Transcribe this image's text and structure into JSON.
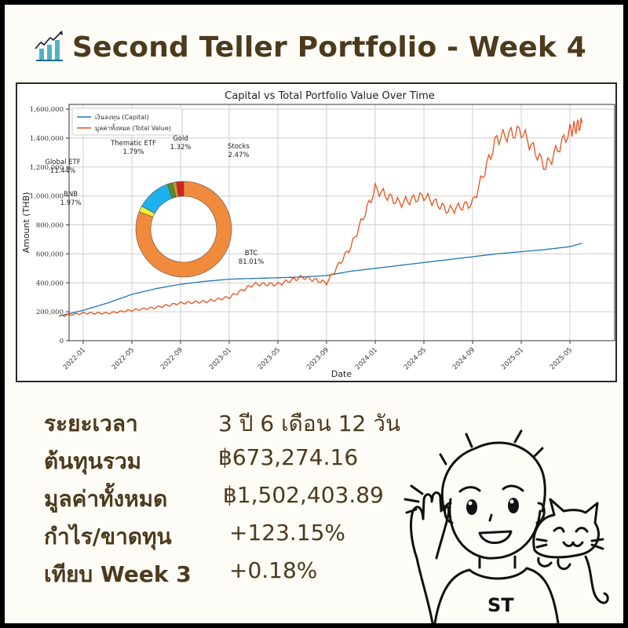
{
  "header": {
    "title": "Second Teller Portfolio - Week 4",
    "icon": "bar-chart-trend-icon",
    "icon_colors": {
      "bars": "#4fb3c7",
      "arrow": "#1a1a2e"
    }
  },
  "stats": [
    {
      "label": "ระยะเวลา",
      "value": "3 ปี 6 เดือน 12 วัน",
      "value_x": 222
    },
    {
      "label": "ต้นทุนรวม",
      "value": "฿673,274.16",
      "value_x": 222
    },
    {
      "label": "มูลค่าทั้งหมด",
      "value": "฿1,502,403.89",
      "value_x": 228
    },
    {
      "label": "กำไร/ขาดทุน",
      "value": "+123.15%",
      "value_x": 236
    },
    {
      "label": "เทียบ Week 3",
      "value": "+0.18%",
      "value_x": 236
    }
  ],
  "mascot": {
    "shirt_text": "ST"
  },
  "colors": {
    "text": "#4d3a1c",
    "capital_line": "#1f77b4",
    "total_line": "#e8531e",
    "background": "#fdfcf7"
  },
  "chart_data": [
    {
      "type": "line",
      "title": "Capital vs Total Portfolio Value Over Time",
      "xlabel": "Date",
      "ylabel": "Amount (THB)",
      "ylim": [
        0,
        1600000
      ],
      "yticks": [
        "0",
        "200,000",
        "400,000",
        "600,000",
        "800,000",
        "1,000,000",
        "1,200,000",
        "1,400,000",
        "1,600,000"
      ],
      "xticks": [
        "2022-01",
        "2022-05",
        "2022-09",
        "2023-01",
        "2023-05",
        "2023-09",
        "2024-01",
        "2024-05",
        "2024-09",
        "2025-01",
        "2025-05"
      ],
      "grid": true,
      "legend_position": "upper left",
      "legend": [
        "เงินลงทุน (Capital)",
        "มูลค่าทั้งหมด (Total Value)"
      ],
      "x": [
        "2021-11",
        "2022-01",
        "2022-03",
        "2022-05",
        "2022-07",
        "2022-09",
        "2022-11",
        "2023-01",
        "2023-03",
        "2023-05",
        "2023-07",
        "2023-09",
        "2023-11",
        "2024-01",
        "2024-03",
        "2024-05",
        "2024-07",
        "2024-09",
        "2024-11",
        "2025-01",
        "2025-03",
        "2025-05",
        "2025-06"
      ],
      "series": [
        {
          "name": "เงินลงทุน (Capital)",
          "color": "#1f77b4",
          "values": [
            170000,
            210000,
            260000,
            320000,
            360000,
            390000,
            410000,
            425000,
            430000,
            435000,
            440000,
            450000,
            480000,
            500000,
            520000,
            540000,
            560000,
            580000,
            600000,
            615000,
            630000,
            650000,
            673274
          ]
        },
        {
          "name": "มูลค่าทั้งหมด (Total Value)",
          "color": "#e8531e",
          "values": [
            170000,
            190000,
            190000,
            210000,
            230000,
            260000,
            270000,
            300000,
            390000,
            390000,
            440000,
            400000,
            650000,
            1050000,
            950000,
            1000000,
            900000,
            950000,
            1400000,
            1450000,
            1200000,
            1450000,
            1502404
          ]
        }
      ]
    },
    {
      "type": "pie",
      "title": "",
      "donut": true,
      "categories": [
        "BTC",
        "BNB",
        "Global ETF",
        "Thematic ETF",
        "Gold",
        "Stocks"
      ],
      "values": [
        81.01,
        1.97,
        11.44,
        1.79,
        1.32,
        2.47
      ],
      "labels": [
        "81.01%",
        "1.97%",
        "11.44%",
        "1.79%",
        "1.32%",
        "2.47%"
      ],
      "colors": [
        "#f08a3c",
        "#f5f032",
        "#1fb0ee",
        "#5a8a2a",
        "#c8962a",
        "#d42020"
      ]
    }
  ]
}
